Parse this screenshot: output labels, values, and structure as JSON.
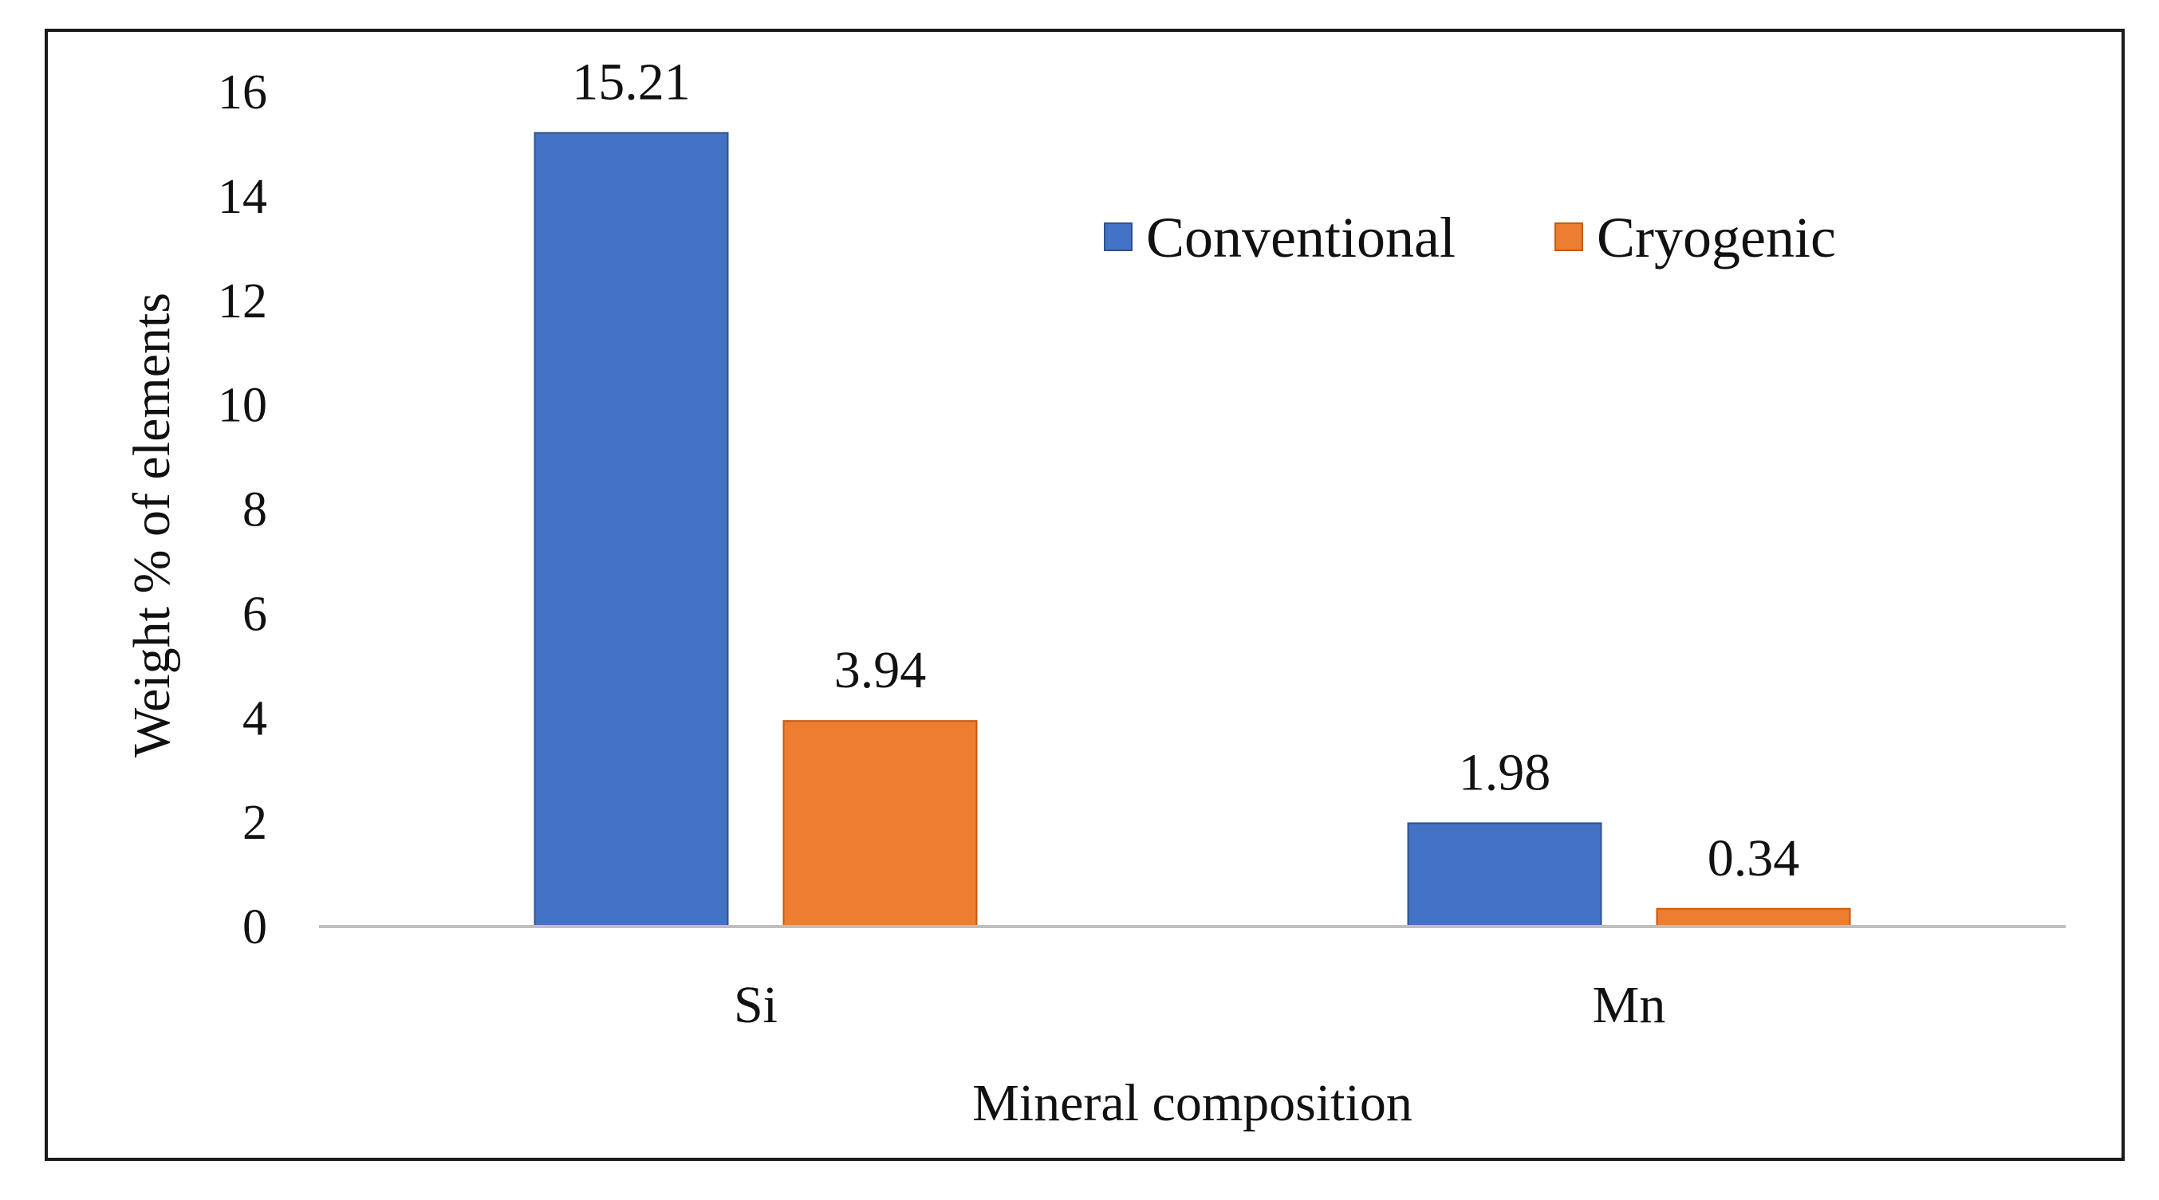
{
  "colors": {
    "conventional": "#4472C4",
    "cryogenic": "#ED7D31",
    "border": "#1a1a1a",
    "baseline": "#bfbfbf",
    "background": "#ffffff"
  },
  "chart_data": {
    "type": "bar",
    "title": "",
    "categories": [
      "Si",
      "Mn"
    ],
    "series": [
      {
        "name": "Conventional",
        "values": [
          15.21,
          1.98
        ],
        "labels": [
          "15.21",
          "1.98"
        ],
        "color": "#4472C4"
      },
      {
        "name": "Cryogenic",
        "values": [
          3.94,
          0.34
        ],
        "labels": [
          "3.94",
          "0.34"
        ],
        "color": "#ED7D31"
      }
    ],
    "xlabel": "Mineral composition",
    "ylabel": "Weight % of elements",
    "ylim": [
      0,
      16
    ],
    "yticks": [
      "0",
      "2",
      "4",
      "6",
      "8",
      "10",
      "12",
      "14",
      "16"
    ],
    "grid": false,
    "legend_position": "top-right"
  }
}
